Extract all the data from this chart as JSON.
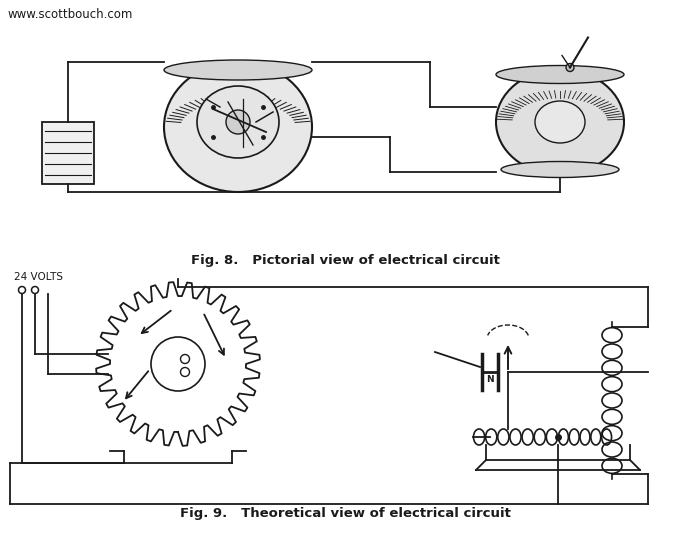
{
  "title_top": "www.scottbouch.com",
  "fig8_caption": "Fig. 8.   Pictorial view of electrical circuit",
  "fig9_caption": "Fig. 9.   Theoretical view of electrical circuit",
  "bg_color": "#ffffff",
  "line_color": "#1a1a1a",
  "fig_width": 6.9,
  "fig_height": 5.42,
  "dpi": 100,
  "volts_label": "24 VOLTS"
}
